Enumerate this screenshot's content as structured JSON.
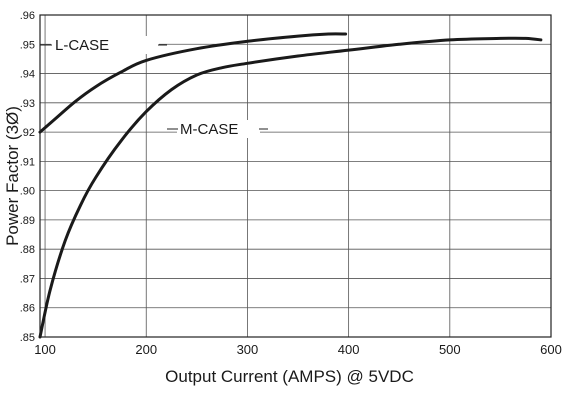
{
  "chart_data": {
    "type": "line",
    "title": "",
    "xlabel": "Output Current (AMPS) @ 5VDC",
    "ylabel": "Power Factor (3Ø)",
    "xlim": [
      95,
      600
    ],
    "ylim": [
      0.85,
      0.96
    ],
    "grid": true,
    "x_ticks": [
      100,
      200,
      300,
      400,
      500,
      600
    ],
    "x_tick_labels": [
      "100",
      "200",
      "300",
      "400",
      "500",
      "600"
    ],
    "y_ticks": [
      0.85,
      0.86,
      0.87,
      0.88,
      0.89,
      0.9,
      0.91,
      0.92,
      0.93,
      0.94,
      0.95,
      0.96
    ],
    "y_tick_labels": [
      ".85",
      ".86",
      ".87",
      ".88",
      ".89",
      ".90",
      ".91",
      ".92",
      ".93",
      ".94",
      ".95",
      ".96"
    ],
    "series": [
      {
        "name": "L-CASE",
        "x": [
          95,
          110,
          130,
          150,
          175,
          200,
          250,
          300,
          350,
          380,
          397
        ],
        "y": [
          0.92,
          0.9245,
          0.9305,
          0.9355,
          0.9405,
          0.9445,
          0.9485,
          0.951,
          0.9528,
          0.9535,
          0.9535
        ]
      },
      {
        "name": "M-CASE",
        "x": [
          95,
          105,
          120,
          135,
          150,
          175,
          200,
          225,
          250,
          275,
          300,
          350,
          400,
          450,
          500,
          550,
          575,
          590
        ],
        "y": [
          0.85,
          0.866,
          0.883,
          0.895,
          0.9045,
          0.917,
          0.927,
          0.9345,
          0.9395,
          0.942,
          0.9435,
          0.946,
          0.948,
          0.95,
          0.9515,
          0.952,
          0.952,
          0.9515
        ]
      }
    ],
    "annotations": [
      {
        "text": "L-CASE",
        "series": "L-CASE"
      },
      {
        "text": "M-CASE",
        "series": "M-CASE"
      }
    ]
  }
}
